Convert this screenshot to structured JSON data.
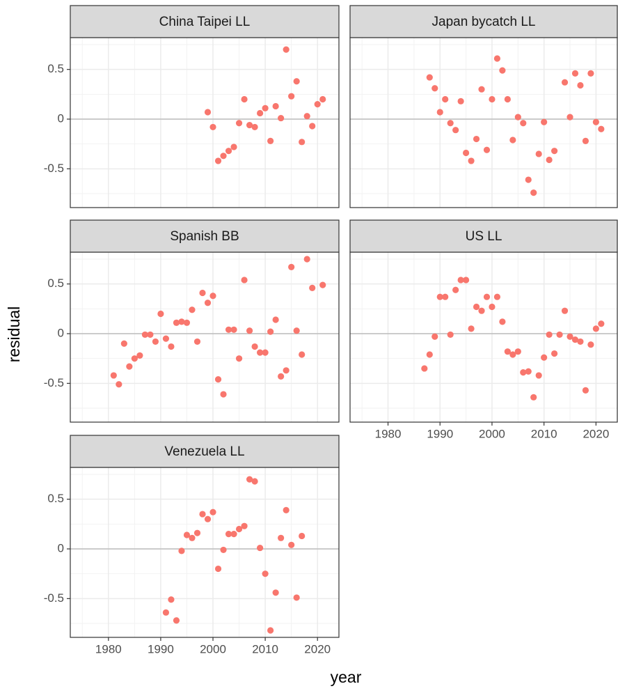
{
  "chart_data": {
    "type": "scatter",
    "x_label": "year",
    "y_label": "residual",
    "color": "#f8766d",
    "xlim": [
      1972.7,
      2024.1
    ],
    "ylim": [
      -0.89,
      0.82
    ],
    "xticks": [
      1980,
      1990,
      2000,
      2010,
      2020
    ],
    "yticks": [
      -0.5,
      0.0,
      0.5
    ],
    "hline": 0,
    "grid": true,
    "panels": [
      {
        "title": "China Taipei LL",
        "x": [
          1999,
          2000,
          2001,
          2002,
          2003,
          2004,
          2005,
          2006,
          2007,
          2008,
          2009,
          2010,
          2011,
          2012,
          2013,
          2014,
          2015,
          2016,
          2017,
          2018,
          2019,
          2020,
          2021
        ],
        "values": [
          0.07,
          -0.08,
          -0.42,
          -0.37,
          -0.32,
          -0.28,
          -0.04,
          0.2,
          -0.06,
          -0.08,
          0.06,
          0.11,
          -0.22,
          0.13,
          0.01,
          0.7,
          0.23,
          0.38,
          -0.23,
          0.03,
          -0.07,
          0.15,
          0.2
        ]
      },
      {
        "title": "Japan bycatch LL",
        "x": [
          1988,
          1989,
          1990,
          1991,
          1992,
          1993,
          1994,
          1995,
          1996,
          1997,
          1998,
          1999,
          2000,
          2001,
          2002,
          2003,
          2004,
          2005,
          2006,
          2007,
          2008,
          2009,
          2010,
          2011,
          2012,
          2014,
          2015,
          2016,
          2017,
          2018,
          2019,
          2020,
          2021
        ],
        "values": [
          0.42,
          0.31,
          0.07,
          0.2,
          -0.04,
          -0.11,
          0.18,
          -0.34,
          -0.42,
          -0.2,
          0.3,
          -0.31,
          0.2,
          0.61,
          0.49,
          0.2,
          -0.21,
          0.02,
          -0.04,
          -0.61,
          -0.74,
          -0.35,
          -0.03,
          -0.41,
          -0.32,
          0.37,
          0.02,
          0.46,
          0.34,
          -0.22,
          0.46,
          -0.03,
          -0.1
        ]
      },
      {
        "title": "Spanish BB",
        "x": [
          1981,
          1982,
          1983,
          1984,
          1985,
          1986,
          1987,
          1988,
          1989,
          1990,
          1991,
          1992,
          1993,
          1994,
          1995,
          1996,
          1997,
          1998,
          1999,
          2000,
          2001,
          2002,
          2003,
          2004,
          2005,
          2006,
          2007,
          2008,
          2009,
          2010,
          2011,
          2012,
          2013,
          2014,
          2015,
          2016,
          2017,
          2018,
          2019,
          2021
        ],
        "values": [
          -0.42,
          -0.51,
          -0.1,
          -0.33,
          -0.25,
          -0.22,
          -0.01,
          -0.01,
          -0.08,
          0.2,
          -0.05,
          -0.13,
          0.11,
          0.12,
          0.11,
          0.24,
          -0.08,
          0.41,
          0.31,
          0.38,
          -0.46,
          -0.61,
          0.04,
          0.04,
          -0.25,
          0.54,
          0.03,
          -0.13,
          -0.19,
          -0.19,
          0.02,
          0.14,
          -0.43,
          -0.37,
          0.67,
          0.03,
          -0.21,
          0.75,
          0.46,
          0.49
        ]
      },
      {
        "title": "US LL",
        "x": [
          1987,
          1988,
          1989,
          1990,
          1991,
          1992,
          1993,
          1994,
          1995,
          1996,
          1997,
          1998,
          1999,
          2000,
          2001,
          2002,
          2003,
          2004,
          2005,
          2006,
          2007,
          2008,
          2009,
          2010,
          2011,
          2012,
          2013,
          2014,
          2015,
          2016,
          2017,
          2018,
          2019,
          2020,
          2021
        ],
        "values": [
          -0.35,
          -0.21,
          -0.03,
          0.37,
          0.37,
          -0.01,
          0.44,
          0.54,
          0.54,
          0.05,
          0.27,
          0.23,
          0.37,
          0.27,
          0.37,
          0.12,
          -0.18,
          -0.21,
          -0.18,
          -0.39,
          -0.38,
          -0.64,
          -0.42,
          -0.24,
          -0.01,
          -0.2,
          -0.01,
          0.23,
          -0.03,
          -0.06,
          -0.08,
          -0.57,
          -0.11,
          0.05,
          0.1
        ]
      },
      {
        "title": "Venezuela LL",
        "x": [
          1991,
          1992,
          1993,
          1994,
          1995,
          1996,
          1997,
          1998,
          1999,
          2000,
          2001,
          2002,
          2003,
          2004,
          2005,
          2006,
          2007,
          2008,
          2009,
          2010,
          2011,
          2012,
          2013,
          2014,
          2015,
          2016,
          2017
        ],
        "values": [
          -0.64,
          -0.51,
          -0.72,
          -0.02,
          0.14,
          0.11,
          0.16,
          0.35,
          0.3,
          0.37,
          -0.2,
          -0.01,
          0.15,
          0.15,
          0.2,
          0.23,
          0.7,
          0.68,
          0.01,
          -0.25,
          -0.82,
          -0.44,
          0.11,
          0.39,
          0.04,
          -0.49,
          0.13
        ]
      }
    ]
  }
}
